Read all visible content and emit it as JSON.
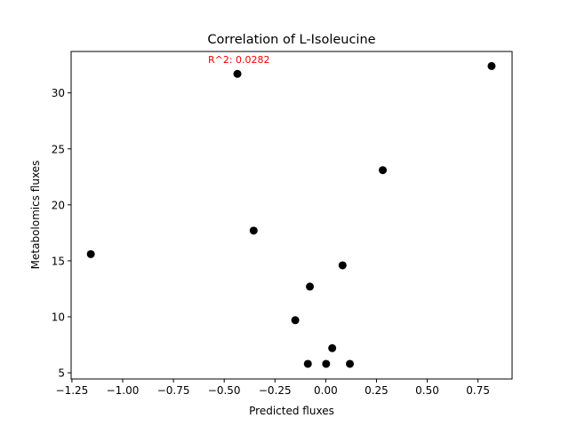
{
  "chart_data": {
    "type": "scatter",
    "title": "Correlation of L-Isoleucine",
    "xlabel": "Predicted fluxes",
    "ylabel": "Metabolomics fluxes",
    "annotation": {
      "text": "R^2: 0.0282",
      "color": "#ff0000"
    },
    "xlim": [
      -1.254,
      0.918
    ],
    "ylim": [
      4.45,
      33.7
    ],
    "xticks": [
      {
        "value": -1.25,
        "label": "−1.25"
      },
      {
        "value": -1.0,
        "label": "−1.00"
      },
      {
        "value": -0.75,
        "label": "−0.75"
      },
      {
        "value": -0.5,
        "label": "−0.50"
      },
      {
        "value": -0.25,
        "label": "−0.25"
      },
      {
        "value": 0.0,
        "label": "0.00"
      },
      {
        "value": 0.25,
        "label": "0.25"
      },
      {
        "value": 0.5,
        "label": "0.50"
      },
      {
        "value": 0.75,
        "label": "0.75"
      }
    ],
    "yticks": [
      {
        "value": 5,
        "label": "5"
      },
      {
        "value": 10,
        "label": "10"
      },
      {
        "value": 15,
        "label": "15"
      },
      {
        "value": 20,
        "label": "20"
      },
      {
        "value": 25,
        "label": "25"
      },
      {
        "value": 30,
        "label": "30"
      }
    ],
    "grid": false,
    "point_color": "#000000",
    "points": [
      {
        "x": -1.157,
        "y": 15.6
      },
      {
        "x": -0.435,
        "y": 31.7
      },
      {
        "x": -0.355,
        "y": 17.7
      },
      {
        "x": -0.15,
        "y": 9.7
      },
      {
        "x": -0.078,
        "y": 12.7
      },
      {
        "x": -0.088,
        "y": 5.8
      },
      {
        "x": 0.002,
        "y": 5.8
      },
      {
        "x": 0.032,
        "y": 7.2
      },
      {
        "x": 0.083,
        "y": 14.6
      },
      {
        "x": 0.119,
        "y": 5.8
      },
      {
        "x": 0.281,
        "y": 23.1
      },
      {
        "x": 0.817,
        "y": 32.4
      }
    ]
  }
}
